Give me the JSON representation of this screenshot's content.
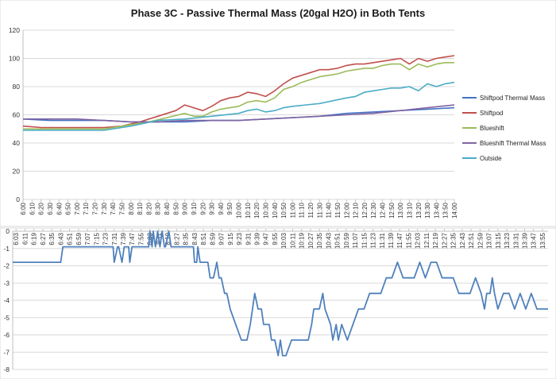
{
  "chart_data": [
    {
      "type": "line",
      "title": "Phase 3C - Passive Thermal Mass (20gal H2O) in Both Tents",
      "xlabel": "",
      "ylabel": "",
      "ylim": [
        0,
        120
      ],
      "yticks": [
        0,
        20,
        40,
        60,
        80,
        100,
        120
      ],
      "grid": true,
      "legend_position": "right",
      "x_start": "6:00",
      "x_end": "14:00",
      "x_step_minutes": 10,
      "x_tick_labels": [
        "6:00",
        "6:10",
        "6:20",
        "6:30",
        "6:40",
        "6:50",
        "7:00",
        "7:10",
        "7:20",
        "7:30",
        "7:40",
        "7:50",
        "8:00",
        "8:10",
        "8:20",
        "8:30",
        "8:40",
        "8:50",
        "9:00",
        "9:10",
        "9:20",
        "9:30",
        "9:40",
        "9:50",
        "10:00",
        "10:10",
        "10:20",
        "10:30",
        "10:40",
        "10:50",
        "11:00",
        "11:10",
        "11:20",
        "11:30",
        "11:40",
        "11:50",
        "12:00",
        "12:10",
        "12:20",
        "12:30",
        "12:40",
        "12:50",
        "13:00",
        "13:10",
        "13:20",
        "13:30",
        "13:40",
        "13:50",
        "14:00"
      ],
      "series": [
        {
          "name": "Shiftpod Thermal Mass",
          "color": "#4472C4",
          "x": [
            "6:00",
            "6:30",
            "7:00",
            "7:30",
            "8:00",
            "8:30",
            "9:00",
            "9:30",
            "10:00",
            "10:30",
            "11:00",
            "11:30",
            "12:00",
            "12:30",
            "13:00",
            "13:30",
            "14:00"
          ],
          "values": [
            57,
            56,
            56,
            56,
            55,
            55,
            55,
            56,
            56,
            57,
            58,
            59,
            61,
            62,
            63,
            64,
            65
          ]
        },
        {
          "name": "Shiftpod",
          "color": "#C0504D",
          "x": [
            "6:00",
            "6:20",
            "7:00",
            "7:30",
            "7:50",
            "8:10",
            "8:30",
            "8:50",
            "9:00",
            "9:20",
            "9:30",
            "9:40",
            "9:50",
            "10:00",
            "10:10",
            "10:20",
            "10:30",
            "10:40",
            "10:50",
            "11:00",
            "11:10",
            "11:20",
            "11:30",
            "11:40",
            "11:50",
            "12:00",
            "12:10",
            "12:20",
            "12:30",
            "12:40",
            "12:50",
            "13:00",
            "13:10",
            "13:20",
            "13:30",
            "13:40",
            "13:50",
            "14:00"
          ],
          "values": [
            52,
            51,
            51,
            51,
            52,
            55,
            59,
            63,
            67,
            63,
            66,
            70,
            72,
            73,
            76,
            75,
            73,
            77,
            82,
            86,
            88,
            90,
            92,
            92,
            93,
            95,
            96,
            96,
            97,
            98,
            99,
            100,
            96,
            100,
            98,
            100,
            101,
            102
          ]
        },
        {
          "name": "Blueshift",
          "color": "#9BBB59",
          "x": [
            "6:00",
            "6:30",
            "7:00",
            "7:30",
            "8:00",
            "8:20",
            "8:40",
            "9:00",
            "9:10",
            "9:20",
            "9:30",
            "9:40",
            "9:50",
            "10:00",
            "10:10",
            "10:20",
            "10:30",
            "10:40",
            "10:50",
            "11:00",
            "11:10",
            "11:20",
            "11:30",
            "11:40",
            "11:50",
            "12:00",
            "12:10",
            "12:20",
            "12:30",
            "12:40",
            "12:50",
            "13:00",
            "13:10",
            "13:20",
            "13:30",
            "13:40",
            "13:50",
            "14:00"
          ],
          "values": [
            50,
            50,
            50,
            50,
            53,
            55,
            58,
            61,
            59,
            59,
            62,
            64,
            65,
            66,
            69,
            70,
            69,
            72,
            78,
            80,
            83,
            85,
            87,
            88,
            89,
            91,
            92,
            93,
            93,
            95,
            96,
            96,
            92,
            96,
            94,
            96,
            97,
            97
          ]
        },
        {
          "name": "Blueshift Thermal Mass",
          "color": "#8064A2",
          "x": [
            "6:00",
            "6:30",
            "7:00",
            "7:30",
            "8:00",
            "8:30",
            "9:00",
            "9:30",
            "10:00",
            "10:30",
            "11:00",
            "11:30",
            "12:00",
            "12:30",
            "13:00",
            "13:30",
            "14:00"
          ],
          "values": [
            57,
            57,
            57,
            56,
            55,
            55,
            56,
            56,
            56,
            57,
            58,
            59,
            60,
            61,
            63,
            65,
            67
          ]
        },
        {
          "name": "Outside",
          "color": "#4BACC6",
          "x": [
            "6:00",
            "6:30",
            "7:00",
            "7:30",
            "8:00",
            "8:30",
            "9:00",
            "9:30",
            "10:00",
            "10:10",
            "10:20",
            "10:30",
            "10:40",
            "10:50",
            "11:00",
            "11:30",
            "12:00",
            "12:10",
            "12:20",
            "12:30",
            "12:40",
            "12:50",
            "13:00",
            "13:10",
            "13:20",
            "13:30",
            "13:40",
            "13:50",
            "14:00"
          ],
          "values": [
            49,
            49,
            49,
            49,
            52,
            56,
            57,
            59,
            61,
            63,
            64,
            62,
            63,
            65,
            66,
            68,
            72,
            73,
            76,
            77,
            78,
            79,
            79,
            80,
            77,
            82,
            80,
            82,
            83
          ]
        }
      ]
    },
    {
      "type": "line",
      "title": "",
      "xlabel": "",
      "ylabel": "",
      "ylim": [
        -8,
        0
      ],
      "yticks": [
        0,
        -1,
        -2,
        -3,
        -4,
        -5,
        -6,
        -7,
        -8
      ],
      "grid": true,
      "legend_position": "none",
      "x_tick_labels": [
        "6:03",
        "6:11",
        "6:19",
        "6:27",
        "6:35",
        "6:43",
        "6:51",
        "6:59",
        "7:07",
        "7:15",
        "7:23",
        "7:31",
        "7:39",
        "7:47",
        "7:55",
        "8:03",
        "8:11",
        "8:19",
        "8:27",
        "8:35",
        "8:43",
        "8:51",
        "8:59",
        "9:07",
        "9:15",
        "9:23",
        "9:31",
        "9:39",
        "9:47",
        "9:55",
        "10:03",
        "10:11",
        "10:19",
        "10:27",
        "10:35",
        "10:43",
        "10:51",
        "10:59",
        "11:07",
        "11:15",
        "11:23",
        "11:31",
        "11:39",
        "11:47",
        "11:55",
        "12:03",
        "12:11",
        "12:19",
        "12:27",
        "12:35",
        "12:43",
        "12:51",
        "12:59",
        "13:07",
        "13:15",
        "13:23",
        "13:31",
        "13:39",
        "13:47",
        "13:55"
      ],
      "series": [
        {
          "name": "",
          "color": "#4F81BD",
          "x": [
            "6:00",
            "6:43",
            "6:45",
            "7:30",
            "7:31",
            "7:34",
            "7:35",
            "7:38",
            "7:40",
            "7:44",
            "7:45",
            "7:47",
            "7:50",
            "8:02",
            "8:03",
            "8:05",
            "8:06",
            "8:08",
            "8:10",
            "8:12",
            "8:14",
            "8:16",
            "8:17",
            "8:20",
            "8:22",
            "8:24",
            "8:30",
            "8:35",
            "8:38",
            "8:42",
            "8:43",
            "8:45",
            "8:46",
            "8:48",
            "8:50",
            "8:55",
            "8:57",
            "9:00",
            "9:03",
            "9:05",
            "9:07",
            "9:10",
            "9:12",
            "9:15",
            "9:20",
            "9:25",
            "9:30",
            "9:33",
            "9:35",
            "9:37",
            "9:40",
            "9:43",
            "9:45",
            "9:50",
            "9:52",
            "9:55",
            "9:58",
            "10:00",
            "10:02",
            "10:05",
            "10:10",
            "10:15",
            "10:20",
            "10:25",
            "10:28",
            "10:30",
            "10:35",
            "10:38",
            "10:40",
            "10:45",
            "10:47",
            "10:50",
            "10:52",
            "10:55",
            "11:00",
            "11:05",
            "11:10",
            "11:15",
            "11:20",
            "11:25",
            "11:30",
            "11:35",
            "11:40",
            "11:45",
            "11:50",
            "11:55",
            "12:00",
            "12:05",
            "12:10",
            "12:15",
            "12:20",
            "12:25",
            "12:30",
            "12:35",
            "12:40",
            "12:45",
            "12:50",
            "12:55",
            "13:00",
            "13:03",
            "13:05",
            "13:08",
            "13:10",
            "13:12",
            "13:15",
            "13:20",
            "13:25",
            "13:30",
            "13:35",
            "13:40",
            "13:45",
            "13:50",
            "13:55",
            "14:00"
          ],
          "values": [
            -1.8,
            -1.8,
            -0.9,
            -0.9,
            -1.8,
            -0.9,
            -0.9,
            -1.8,
            -0.9,
            -0.9,
            -1.8,
            -0.9,
            -0.9,
            -0.9,
            0,
            -0.9,
            0,
            -0.9,
            0,
            -0.9,
            0,
            -0.9,
            -0.9,
            0,
            -0.9,
            -0.9,
            -0.9,
            -0.9,
            -0.9,
            -0.9,
            -1.8,
            -1.8,
            -0.9,
            -1.8,
            -1.8,
            -1.8,
            -2.7,
            -2.7,
            -1.8,
            -2.7,
            -2.7,
            -3.6,
            -3.6,
            -4.5,
            -5.4,
            -6.3,
            -6.3,
            -5.4,
            -4.5,
            -3.6,
            -4.5,
            -4.5,
            -5.4,
            -5.4,
            -6.3,
            -6.3,
            -7.2,
            -6.3,
            -7.2,
            -7.2,
            -6.3,
            -6.3,
            -6.3,
            -6.3,
            -5.4,
            -4.5,
            -4.5,
            -3.6,
            -4.5,
            -5.4,
            -6.3,
            -5.4,
            -6.3,
            -5.4,
            -6.3,
            -5.4,
            -4.5,
            -4.5,
            -3.6,
            -3.6,
            -3.6,
            -2.7,
            -2.7,
            -1.8,
            -2.7,
            -2.7,
            -2.7,
            -1.8,
            -2.7,
            -1.8,
            -1.8,
            -2.7,
            -2.7,
            -2.7,
            -3.6,
            -3.6,
            -3.6,
            -2.7,
            -3.6,
            -4.5,
            -3.6,
            -3.6,
            -2.7,
            -3.6,
            -4.5,
            -3.6,
            -3.6,
            -4.5,
            -3.6,
            -4.5,
            -3.6,
            -4.5,
            -4.5,
            -4.5
          ]
        }
      ]
    }
  ]
}
